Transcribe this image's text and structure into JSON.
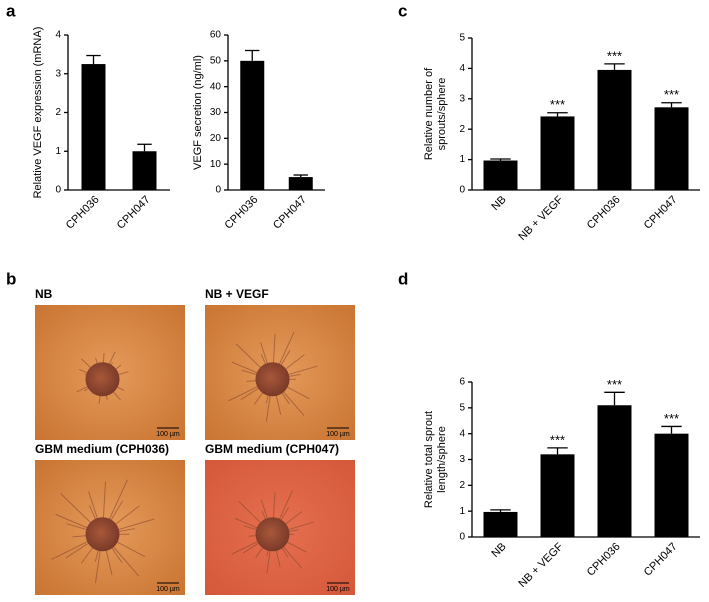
{
  "panel_labels": [
    "a",
    "b",
    "c",
    "d"
  ],
  "images": [
    {
      "title": "NB",
      "scale_bar": "100 µm"
    },
    {
      "title": "NB + VEGF",
      "scale_bar": "100 µm"
    },
    {
      "title": "GBM medium (CPH036)",
      "scale_bar": "100 µm"
    },
    {
      "title": "GBM medium (CPH047)",
      "scale_bar": "100 µm"
    }
  ],
  "chart_data": [
    {
      "type": "bar",
      "ylabel": [
        "Relative VEGF expression (mRNA)"
      ],
      "categories": [
        "CPH036",
        "CPH047"
      ],
      "values": [
        3.25,
        1.0
      ],
      "errors": [
        0.22,
        0.18
      ],
      "color": "#000000",
      "ylim": [
        0,
        4
      ],
      "yticks": [
        0,
        1,
        2,
        3,
        4
      ]
    },
    {
      "type": "bar",
      "ylabel": [
        "VEGF secretion (ng/ml)"
      ],
      "categories": [
        "CPH036",
        "CPH047"
      ],
      "values": [
        50,
        5
      ],
      "errors": [
        4,
        0.8
      ],
      "color": "#000000",
      "ylim": [
        0,
        60
      ],
      "yticks": [
        0,
        10,
        20,
        30,
        40,
        50,
        60
      ]
    },
    {
      "type": "bar",
      "ylabel": [
        "Relative number of",
        "sprouts/sphere"
      ],
      "categories": [
        "NB",
        "NB + VEGF",
        "CPH036",
        "CPH047"
      ],
      "values": [
        0.97,
        2.42,
        3.95,
        2.72
      ],
      "errors": [
        0.05,
        0.12,
        0.2,
        0.15
      ],
      "annotations": [
        null,
        "***",
        "***",
        "***"
      ],
      "color": "#000000",
      "ylim": [
        0,
        5
      ],
      "yticks": [
        0,
        1,
        2,
        3,
        4,
        5
      ]
    },
    {
      "type": "bar",
      "ylabel": [
        "Relative total sprout",
        "length/sphere"
      ],
      "categories": [
        "NB",
        "NB + VEGF",
        "CPH036",
        "CPH047"
      ],
      "values": [
        0.97,
        3.2,
        5.1,
        4.0
      ],
      "errors": [
        0.08,
        0.25,
        0.5,
        0.28
      ],
      "annotations": [
        null,
        "***",
        "***",
        "***"
      ],
      "color": "#000000",
      "ylim": [
        0,
        6
      ],
      "yticks": [
        0,
        1,
        2,
        3,
        4,
        5,
        6
      ]
    }
  ]
}
